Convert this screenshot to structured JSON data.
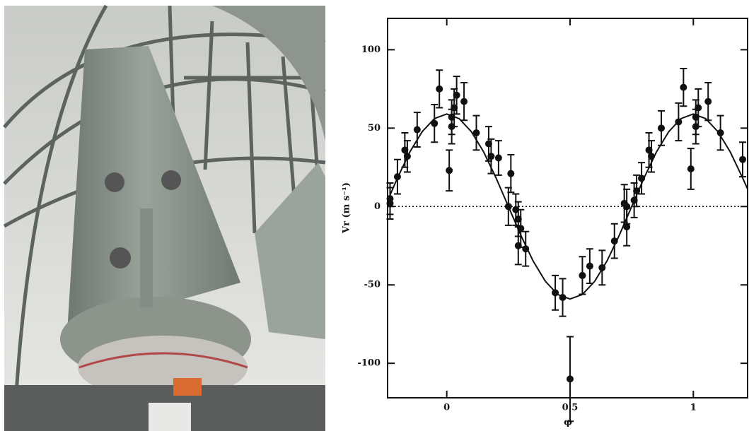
{
  "chart_data": {
    "type": "scatter",
    "xlabel": "φ",
    "ylabel": "Vr (m s⁻¹)",
    "xlim": [
      -0.24,
      1.22
    ],
    "ylim": [
      -122,
      120
    ],
    "xticks": [
      0,
      0.5,
      1
    ],
    "yticks": [
      100,
      50,
      0,
      -50,
      -100
    ],
    "zero_line": true,
    "series": [
      {
        "name": "data",
        "color": "#111111",
        "x": [
          -0.23,
          -0.23,
          -0.2,
          -0.17,
          -0.16,
          -0.12,
          -0.05,
          -0.03,
          0.01,
          0.02,
          0.02,
          0.03,
          0.04,
          0.07,
          0.12,
          0.17,
          0.18,
          0.21,
          0.26,
          0.25,
          0.28,
          0.29,
          0.3,
          0.29,
          0.32,
          0.44,
          0.47,
          0.5,
          0.55,
          0.58,
          0.63,
          0.68,
          0.72,
          0.73,
          0.73,
          0.76,
          0.77,
          0.79,
          0.82,
          0.83,
          0.87,
          0.94,
          0.96,
          0.99,
          1.01,
          1.01,
          1.02,
          1.06,
          1.11,
          1.2
        ],
        "values": [
          2,
          5,
          19,
          36,
          32,
          49,
          53,
          75,
          23,
          51,
          57,
          63,
          71,
          67,
          47,
          40,
          32,
          31,
          21,
          0,
          -2,
          -8,
          -14,
          -25,
          -27,
          -55,
          -58,
          -110,
          -44,
          -38,
          -39,
          -22,
          2,
          -13,
          0,
          4,
          10,
          18,
          36,
          32,
          50,
          54,
          76,
          24,
          51,
          57,
          63,
          67,
          47,
          30
        ],
        "errors": [
          10,
          10,
          11,
          11,
          10,
          11,
          12,
          12,
          13,
          11,
          11,
          12,
          12,
          12,
          11,
          11,
          11,
          11,
          12,
          12,
          10,
          11,
          12,
          12,
          11,
          11,
          12,
          27,
          12,
          11,
          11,
          11,
          12,
          12,
          11,
          11,
          10,
          10,
          11,
          10,
          11,
          12,
          12,
          13,
          11,
          11,
          12,
          12,
          11,
          11
        ]
      },
      {
        "name": "fit",
        "color": "#111111",
        "line": true,
        "x": [
          -0.24,
          -0.2,
          -0.15,
          -0.1,
          -0.05,
          0,
          0.05,
          0.1,
          0.15,
          0.2,
          0.25,
          0.3,
          0.35,
          0.4,
          0.45,
          0.5,
          0.55,
          0.6,
          0.65,
          0.7,
          0.75,
          0.8,
          0.85,
          0.9,
          0.95,
          1,
          1.05,
          1.1,
          1.15,
          1.2,
          1.22
        ],
        "values": [
          3.7,
          18.2,
          34.7,
          47.7,
          56.1,
          59,
          56.1,
          47.7,
          34.7,
          18.2,
          0,
          -18.2,
          -34.7,
          -47.7,
          -56.1,
          -59,
          -56.1,
          -47.7,
          -34.7,
          -18.2,
          0,
          18.2,
          34.7,
          47.7,
          56.1,
          59,
          56.1,
          47.7,
          34.7,
          18.2,
          11.1
        ]
      }
    ]
  }
}
